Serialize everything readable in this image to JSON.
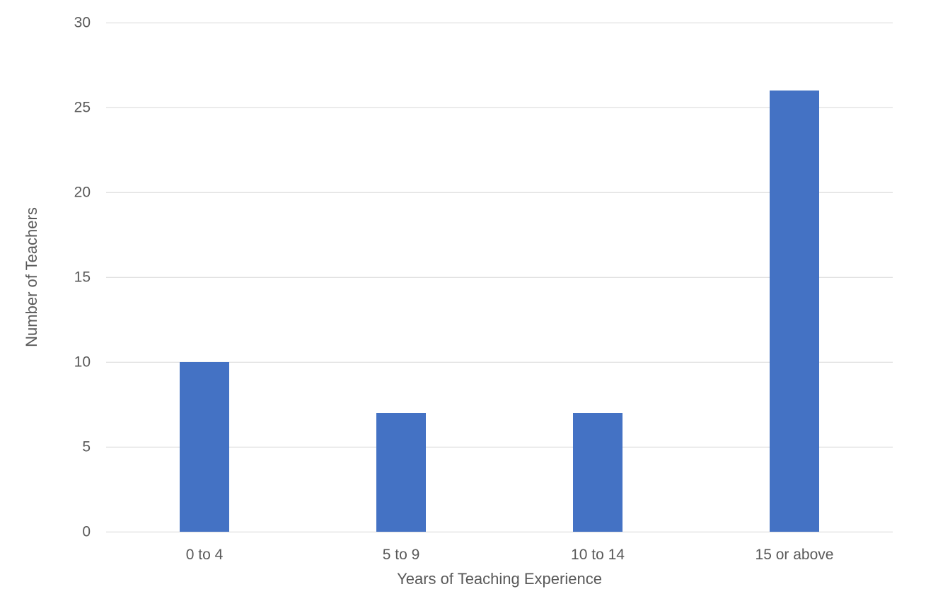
{
  "chart_data": {
    "type": "bar",
    "title": "",
    "categories": [
      "0 to 4",
      "5 to 9",
      "10 to 14",
      "15 or above"
    ],
    "values": [
      10,
      7,
      7,
      26
    ],
    "xlabel": "Years of Teaching Experience",
    "ylabel": "Number of Teachers",
    "ylim": [
      0,
      30
    ],
    "yticks": [
      0,
      5,
      10,
      15,
      20,
      25,
      30
    ],
    "grid": "horizontal",
    "legend": "none",
    "bar_color": "#4472C4",
    "gridline_color": "#D9D9D9",
    "text_color": "#595959",
    "background_color": "#FFFFFF"
  }
}
